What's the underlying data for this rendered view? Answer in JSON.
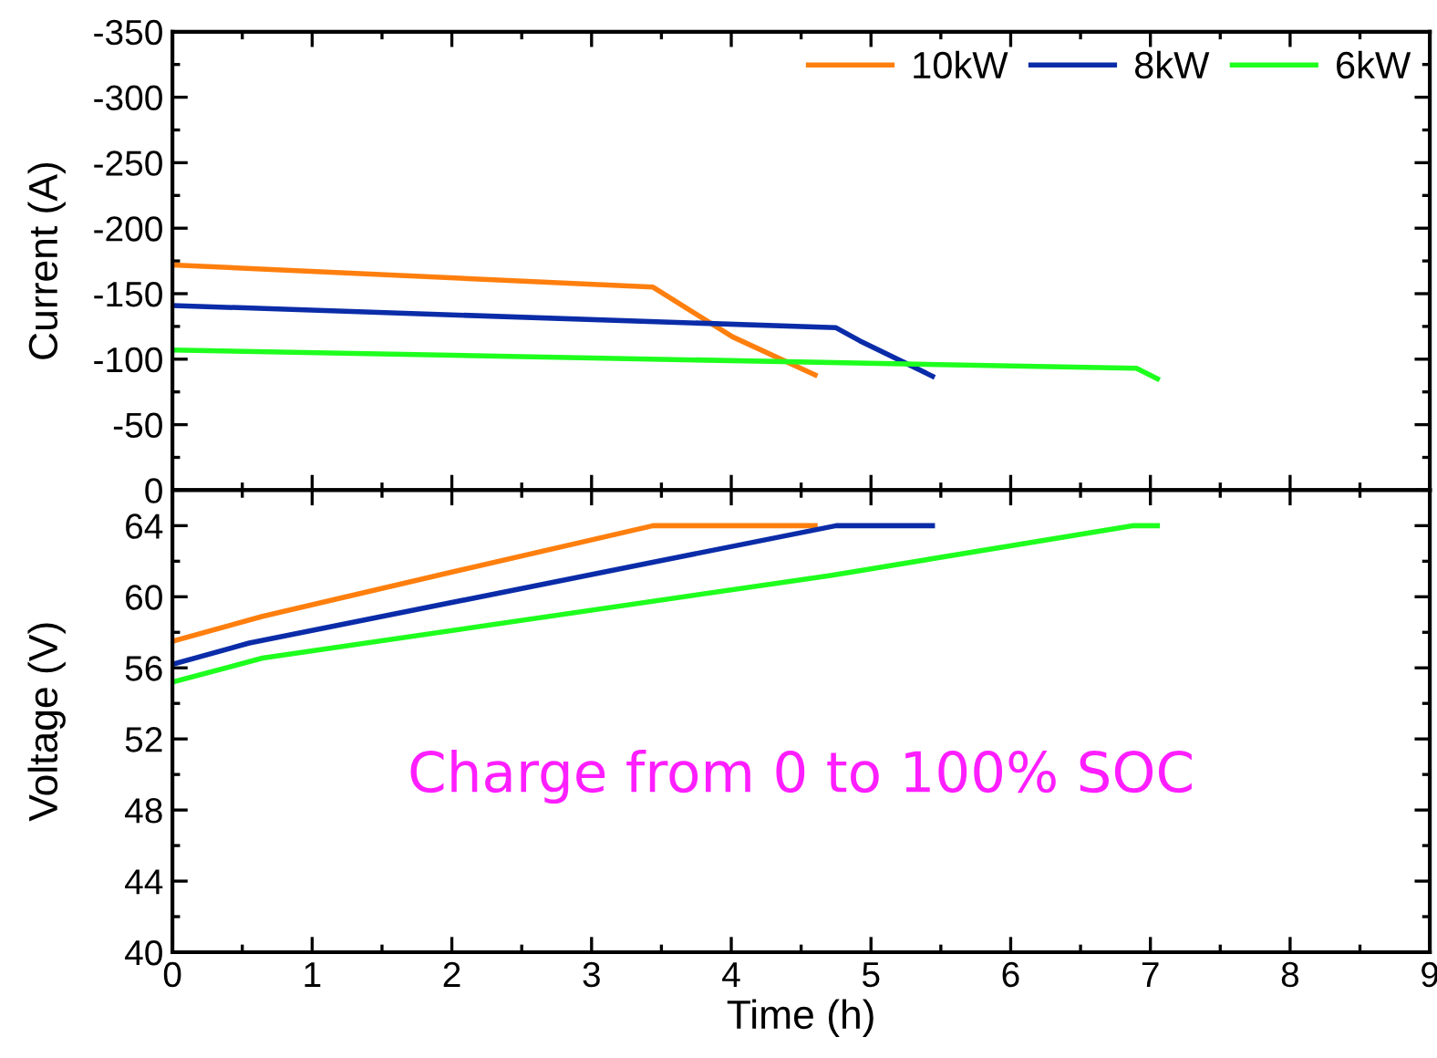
{
  "chart_data": [
    {
      "type": "line",
      "ylabel": "Current (A)",
      "xlim": [
        0,
        9
      ],
      "xticks": [
        0,
        1,
        2,
        3,
        4,
        5,
        6,
        7,
        8,
        9
      ],
      "ylim": [
        0,
        -350
      ],
      "yticks": [
        -350,
        -300,
        -250,
        -200,
        -150,
        -100,
        -50,
        0
      ],
      "tick_labels": "y",
      "legend": "top right",
      "grid": false,
      "series": [
        {
          "name": "10kW",
          "color": "#ff7f0e",
          "x": [
            0,
            3.44,
            4.01,
            4.6
          ],
          "values": [
            -172,
            -155,
            -117,
            -88
          ]
        },
        {
          "name": "8kW",
          "color": "#0b2ca8",
          "x": [
            0,
            4.75,
            4.92,
            5.44
          ],
          "values": [
            -141,
            -124,
            -114,
            -87
          ]
        },
        {
          "name": "6kW",
          "color": "#1eff1e",
          "x": [
            0,
            6.9,
            7.05
          ],
          "values": [
            -107,
            -93,
            -85
          ]
        }
      ]
    },
    {
      "type": "line",
      "xlabel": "Time (h)",
      "ylabel": "Voltage (V)",
      "xlim": [
        0,
        9
      ],
      "xticks": [
        0,
        1,
        2,
        3,
        4,
        5,
        6,
        7,
        8,
        9
      ],
      "ylim": [
        40,
        66
      ],
      "yticks": [
        40,
        44,
        48,
        52,
        56,
        60,
        64
      ],
      "legend": false,
      "grid": false,
      "annotations": [
        "Charge from 0 to 100% SOC"
      ],
      "series": [
        {
          "color": "#ff7f0e",
          "x": [
            0,
            0.645,
            1.95,
            3.44,
            4.6
          ],
          "values": [
            57.5,
            58.9,
            61.3,
            64,
            64
          ]
        },
        {
          "color": "#0b2ca8",
          "x": [
            0,
            0.55,
            3.38,
            4.75,
            5.44
          ],
          "values": [
            56.2,
            57.4,
            61.85,
            64,
            64
          ]
        },
        {
          "color": "#1eff1e",
          "x": [
            0,
            0.645,
            4.71,
            6.88,
            7.05
          ],
          "values": [
            55.2,
            56.55,
            61.2,
            64,
            64
          ]
        }
      ]
    }
  ]
}
